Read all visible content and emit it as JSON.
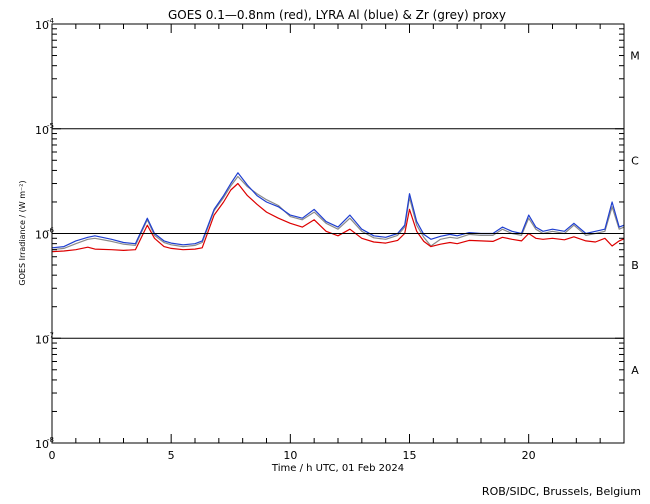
{
  "chart_data": {
    "type": "line",
    "title": "GOES 0.1—0.8nm (red), LYRA Al (blue) & Zr (grey) proxy",
    "xlabel": "Time / h UTC, 01 Feb 2024",
    "ylabel": "GOES Irradiance / (W m⁻²)",
    "xlim": [
      0,
      24
    ],
    "ylim": [
      1e-08,
      0.0001
    ],
    "yscale": "log",
    "x_ticks": [
      0,
      5,
      10,
      15,
      20
    ],
    "x_tick_labels": [
      "0",
      "5",
      "10",
      "15",
      "20"
    ],
    "y_tick_labels": [
      {
        "base": "10",
        "exp": "-4",
        "value": 0.0001
      },
      {
        "base": "10",
        "exp": "-5",
        "value": 1e-05
      },
      {
        "base": "10",
        "exp": "-6",
        "value": 1e-06
      },
      {
        "base": "10",
        "exp": "-7",
        "value": 1e-07
      },
      {
        "base": "10",
        "exp": "-8",
        "value": 1e-08
      }
    ],
    "class_labels": [
      {
        "label": "M",
        "value": 5e-05
      },
      {
        "label": "C",
        "value": 5e-06
      },
      {
        "label": "B",
        "value": 5e-07
      },
      {
        "label": "A",
        "value": 5e-08
      }
    ],
    "threshold_lines": [
      1e-05,
      1e-06,
      1e-07
    ],
    "credit": "ROB/SIDC, Brussels, Belgium",
    "series": [
      {
        "color": "#dd0000",
        "x": [
          0.0,
          0.5,
          1.0,
          1.5,
          1.8,
          2.5,
          3.0,
          3.5,
          4.0,
          4.3,
          4.7,
          5.0,
          5.5,
          6.0,
          6.3,
          6.8,
          7.2,
          7.5,
          7.8,
          8.2,
          8.6,
          9.0,
          9.5,
          10.0,
          10.5,
          11.0,
          11.5,
          12.0,
          12.5,
          13.0,
          13.5,
          14.0,
          14.5,
          14.8,
          15.0,
          15.3,
          15.6,
          15.9,
          16.3,
          16.7,
          17.0,
          17.5,
          18.0,
          18.5,
          18.9,
          19.3,
          19.7,
          20.0,
          20.3,
          20.6,
          21.0,
          21.5,
          21.9,
          22.4,
          22.8,
          23.2,
          23.5,
          23.8,
          24.0
        ],
        "y": [
          6.7e-07,
          6.8e-07,
          7e-07,
          7.4e-07,
          7.1e-07,
          7e-07,
          6.9e-07,
          7e-07,
          1.2e-06,
          9e-07,
          7.5e-07,
          7.2e-07,
          7e-07,
          7.1e-07,
          7.3e-07,
          1.5e-06,
          2e-06,
          2.6e-06,
          3e-06,
          2.3e-06,
          1.9e-06,
          1.6e-06,
          1.4e-06,
          1.25e-06,
          1.15e-06,
          1.35e-06,
          1.05e-06,
          9.5e-07,
          1.1e-06,
          9e-07,
          8.3e-07,
          8.1e-07,
          8.6e-07,
          1e-06,
          1.7e-06,
          1.05e-06,
          8.4e-07,
          7.5e-07,
          7.9e-07,
          8.2e-07,
          8e-07,
          8.6e-07,
          8.5e-07,
          8.4e-07,
          9.2e-07,
          8.8e-07,
          8.5e-07,
          1e-06,
          9e-07,
          8.8e-07,
          9e-07,
          8.7e-07,
          9.3e-07,
          8.5e-07,
          8.3e-07,
          9e-07,
          7.6e-07,
          8.5e-07,
          8.9e-07
        ]
      },
      {
        "color": "#1f3fd0",
        "x": [
          0.0,
          0.5,
          1.0,
          1.5,
          1.8,
          2.5,
          3.0,
          3.5,
          4.0,
          4.3,
          4.7,
          5.0,
          5.5,
          6.0,
          6.3,
          6.8,
          7.2,
          7.5,
          7.8,
          8.2,
          8.6,
          9.0,
          9.5,
          10.0,
          10.5,
          11.0,
          11.5,
          12.0,
          12.5,
          13.0,
          13.5,
          14.0,
          14.5,
          14.8,
          15.0,
          15.3,
          15.6,
          15.9,
          16.3,
          16.7,
          17.0,
          17.5,
          18.0,
          18.5,
          18.9,
          19.3,
          19.7,
          20.0,
          20.3,
          20.6,
          21.0,
          21.5,
          21.9,
          22.4,
          22.8,
          23.2,
          23.5,
          23.8,
          24.0
        ],
        "y": [
          7.3e-07,
          7.5e-07,
          8.5e-07,
          9.2e-07,
          9.5e-07,
          8.8e-07,
          8.2e-07,
          8e-07,
          1.4e-06,
          1e-06,
          8.5e-07,
          8.1e-07,
          7.8e-07,
          8e-07,
          8.5e-07,
          1.7e-06,
          2.3e-06,
          3e-06,
          3.8e-06,
          2.9e-06,
          2.3e-06,
          2e-06,
          1.8e-06,
          1.5e-06,
          1.4e-06,
          1.7e-06,
          1.3e-06,
          1.15e-06,
          1.5e-06,
          1.1e-06,
          9.5e-07,
          9.2e-07,
          1e-06,
          1.2e-06,
          2.4e-06,
          1.3e-06,
          9.8e-07,
          8.8e-07,
          9.4e-07,
          9.8e-07,
          9.5e-07,
          1.02e-06,
          1e-06,
          1e-06,
          1.15e-06,
          1.05e-06,
          1e-06,
          1.5e-06,
          1.15e-06,
          1.05e-06,
          1.1e-06,
          1.05e-06,
          1.25e-06,
          1e-06,
          1.05e-06,
          1.1e-06,
          2e-06,
          1.15e-06,
          1.2e-06
        ]
      },
      {
        "color": "#8a8a8a",
        "x": [
          0.0,
          0.5,
          1.0,
          1.5,
          1.8,
          2.5,
          3.0,
          3.5,
          4.0,
          4.3,
          4.7,
          5.0,
          5.5,
          6.0,
          6.3,
          6.8,
          7.2,
          7.5,
          7.8,
          8.2,
          8.6,
          9.0,
          9.5,
          10.0,
          10.5,
          11.0,
          11.5,
          12.0,
          12.5,
          13.0,
          13.5,
          14.0,
          14.5,
          14.8,
          15.0,
          15.3,
          15.6,
          15.9,
          16.3,
          16.7,
          17.0,
          17.5,
          18.0,
          18.5,
          18.9,
          19.3,
          19.7,
          20.0,
          20.3,
          20.6,
          21.0,
          21.5,
          21.9,
          22.4,
          22.8,
          23.2,
          23.5,
          23.8,
          24.0
        ],
        "y": [
          7e-07,
          7.2e-07,
          8e-07,
          8.8e-07,
          9e-07,
          8.4e-07,
          7.9e-07,
          7.7e-07,
          1.35e-06,
          9.6e-07,
          8.2e-07,
          7.8e-07,
          7.5e-07,
          7.7e-07,
          8.2e-07,
          1.65e-06,
          2.2e-06,
          2.85e-06,
          3.5e-06,
          2.8e-06,
          2.4e-06,
          2.1e-06,
          1.85e-06,
          1.45e-06,
          1.35e-06,
          1.6e-06,
          1.25e-06,
          1.1e-06,
          1.4e-06,
          1.05e-06,
          9.1e-07,
          8.8e-07,
          9.6e-07,
          1.15e-06,
          2.2e-06,
          1.2e-06,
          9.2e-07,
          7.6e-07,
          8.8e-07,
          9.2e-07,
          9e-07,
          9.8e-07,
          9.6e-07,
          9.6e-07,
          1.1e-06,
          1e-06,
          9.6e-07,
          1.4e-06,
          1.1e-06,
          1e-06,
          1.05e-06,
          1e-06,
          1.2e-06,
          9.6e-07,
          1e-06,
          1.05e-06,
          1.8e-06,
          1.1e-06,
          1.15e-06
        ]
      }
    ]
  }
}
